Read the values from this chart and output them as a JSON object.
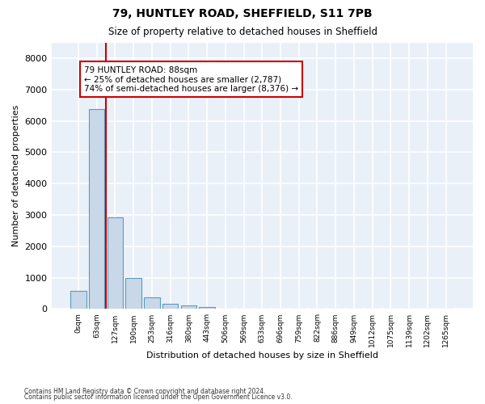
{
  "title1": "79, HUNTLEY ROAD, SHEFFIELD, S11 7PB",
  "title2": "Size of property relative to detached houses in Sheffield",
  "xlabel": "Distribution of detached houses by size in Sheffield",
  "ylabel": "Number of detached properties",
  "categories": [
    "0sqm",
    "63sqm",
    "127sqm",
    "190sqm",
    "253sqm",
    "316sqm",
    "380sqm",
    "443sqm",
    "506sqm",
    "569sqm",
    "633sqm",
    "696sqm",
    "759sqm",
    "822sqm",
    "886sqm",
    "949sqm",
    "1012sqm",
    "1075sqm",
    "1139sqm",
    "1202sqm",
    "1265sqm"
  ],
  "bar_values": [
    590,
    6380,
    2920,
    980,
    360,
    175,
    105,
    75,
    0,
    0,
    0,
    0,
    0,
    0,
    0,
    0,
    0,
    0,
    0,
    0,
    0
  ],
  "bar_color": "#c8d8e8",
  "bar_edge_color": "#5a9abf",
  "background_color": "#eaf0f8",
  "grid_color": "#ffffff",
  "vline_x": 1.5,
  "vline_color": "#cc0000",
  "annotation_text": "79 HUNTLEY ROAD: 88sqm\n← 25% of detached houses are smaller (2,787)\n74% of semi-detached houses are larger (8,376) →",
  "annotation_box_color": "#cc0000",
  "ylim": [
    0,
    8500
  ],
  "yticks": [
    0,
    1000,
    2000,
    3000,
    4000,
    5000,
    6000,
    7000,
    8000
  ],
  "footer1": "Contains HM Land Registry data © Crown copyright and database right 2024.",
  "footer2": "Contains public sector information licensed under the Open Government Licence v3.0."
}
